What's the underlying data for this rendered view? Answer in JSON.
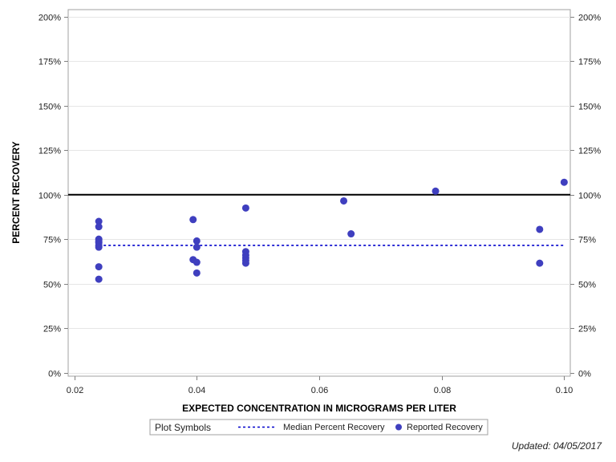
{
  "chart_data": {
    "type": "scatter",
    "xlabel": "EXPECTED CONCENTRATION IN MICROGRAMS PER LITER",
    "ylabel": "PERCENT RECOVERY",
    "xlim": [
      0.019,
      0.101
    ],
    "ylim": [
      -2,
      204
    ],
    "x_ticks": [
      0.02,
      0.04,
      0.06,
      0.08,
      0.1
    ],
    "x_tick_labels": [
      "0.02",
      "0.04",
      "0.06",
      "0.08",
      "0.10"
    ],
    "y_ticks": [
      0,
      25,
      50,
      75,
      100,
      125,
      150,
      175,
      200
    ],
    "y_tick_labels": [
      "0%",
      "25%",
      "50%",
      "75%",
      "100%",
      "125%",
      "150%",
      "175%",
      "200%"
    ],
    "grid": true,
    "reference_line": {
      "y": 100,
      "color": "#000000"
    },
    "median_line": {
      "y": 71.5,
      "x_start": 0.024,
      "x_end": 0.1,
      "color": "#0000cc"
    },
    "series": [
      {
        "name": "Reported Recovery",
        "color": "#3f3fbf",
        "points": [
          [
            0.024,
            85
          ],
          [
            0.024,
            82
          ],
          [
            0.024,
            75
          ],
          [
            0.024,
            74
          ],
          [
            0.024,
            73
          ],
          [
            0.024,
            71.5
          ],
          [
            0.024,
            70.5
          ],
          [
            0.024,
            59.5
          ],
          [
            0.024,
            52.5
          ],
          [
            0.0394,
            86
          ],
          [
            0.04,
            74
          ],
          [
            0.04,
            70.5
          ],
          [
            0.0394,
            63.5
          ],
          [
            0.04,
            62
          ],
          [
            0.04,
            56
          ],
          [
            0.048,
            92.5
          ],
          [
            0.048,
            68
          ],
          [
            0.048,
            66
          ],
          [
            0.048,
            64.5
          ],
          [
            0.048,
            63
          ],
          [
            0.048,
            61.5
          ],
          [
            0.064,
            96.5
          ],
          [
            0.0652,
            78
          ],
          [
            0.079,
            102
          ],
          [
            0.096,
            80.5
          ],
          [
            0.096,
            61.5
          ],
          [
            0.1,
            107
          ]
        ]
      }
    ],
    "legend": {
      "position": "bottom",
      "title": "Plot Symbols",
      "items": [
        {
          "label": "Median Percent Recovery",
          "kind": "dashed-line",
          "color": "#0000cc"
        },
        {
          "label": "Reported Recovery",
          "kind": "marker",
          "color": "#3f3fbf"
        }
      ]
    }
  },
  "footnote": "Updated: 04/05/2017"
}
